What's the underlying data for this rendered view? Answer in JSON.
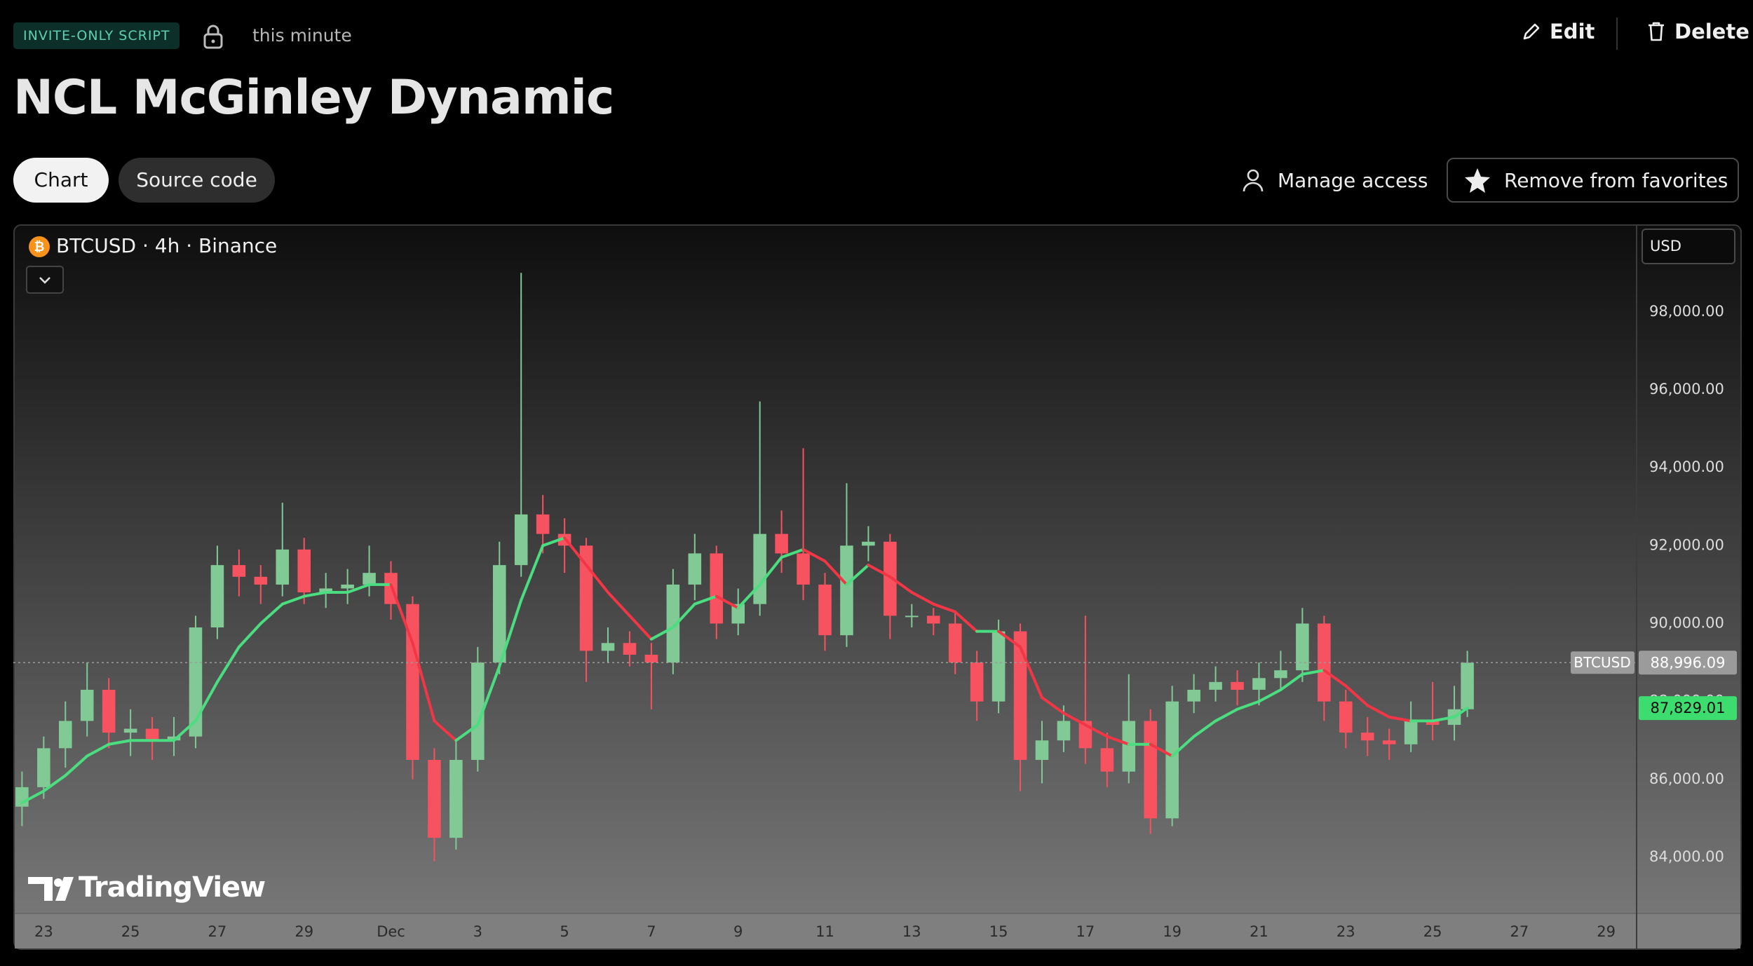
{
  "header": {
    "badge": "INVITE-ONLY SCRIPT",
    "updated": "this minute",
    "title": "NCL McGinley Dynamic",
    "actions": [
      "Edit",
      "Delete"
    ]
  },
  "tabs": [
    "Chart",
    "Source code"
  ],
  "buttons": [
    "Manage access",
    "Remove from favorites"
  ],
  "chart_data": {
    "type": "candlestick",
    "title": "BTCUSD · 4h · Binance",
    "currency": "USD",
    "watermark": "TradingView",
    "up_color": "#81c995",
    "down_color": "#f7525f",
    "x": [
      22.5,
      23,
      23.5,
      24,
      24.5,
      25,
      25.5,
      26,
      26.5,
      27,
      27.5,
      28,
      28.5,
      29,
      29.5,
      30,
      30.5,
      31,
      31.5,
      32,
      32.5,
      33,
      33.5,
      34,
      34.5,
      35,
      35.5,
      36,
      36.5,
      37,
      37.5,
      38,
      38.5,
      39,
      39.5,
      40,
      40.5,
      41,
      41.5,
      42,
      42.5,
      43,
      43.5,
      44,
      44.5,
      45,
      45.5,
      46,
      46.5,
      47,
      47.5,
      48,
      48.5,
      49,
      49.5,
      50,
      50.5,
      51,
      51.5,
      52,
      52.5,
      53,
      53.5,
      54,
      54.5,
      55,
      55.5,
      55.8
    ],
    "open": [
      85300,
      85800,
      86800,
      87500,
      88300,
      87200,
      87300,
      87000,
      87100,
      89900,
      91500,
      91200,
      91000,
      91900,
      90800,
      90900,
      91000,
      91300,
      90500,
      86500,
      84500,
      86500,
      89000,
      91500,
      92800,
      92300,
      92000,
      89300,
      89500,
      89200,
      89000,
      91000,
      91800,
      90000,
      90500,
      92300,
      91800,
      91000,
      89700,
      92000,
      92100,
      90200,
      90200,
      90000,
      89000,
      88000,
      89800,
      86500,
      87000,
      87500,
      86800,
      86200,
      87500,
      85000,
      88000,
      88300,
      88500,
      88300,
      88600,
      88800,
      90000,
      88000,
      87200,
      87000,
      86900,
      87500,
      87400,
      87800
    ],
    "high": [
      86200,
      87100,
      88000,
      89000,
      88600,
      87800,
      87600,
      87600,
      90200,
      92000,
      91900,
      91500,
      93100,
      92200,
      91300,
      91400,
      92000,
      91600,
      90700,
      86800,
      87000,
      89400,
      92100,
      99000,
      93300,
      92700,
      92200,
      89900,
      89800,
      89500,
      91400,
      92300,
      92000,
      90900,
      95700,
      92900,
      94500,
      91300,
      93600,
      92500,
      92300,
      90500,
      90400,
      90300,
      89300,
      90100,
      90000,
      87500,
      87900,
      90200,
      87200,
      88700,
      87800,
      88400,
      88700,
      88900,
      88800,
      89000,
      89300,
      90400,
      90200,
      88300,
      87600,
      87300,
      88000,
      88500,
      88400,
      89300
    ],
    "low": [
      84800,
      85500,
      86300,
      87100,
      86800,
      86600,
      86500,
      86600,
      86800,
      89600,
      90700,
      90500,
      90700,
      90500,
      90400,
      90500,
      90700,
      90100,
      86000,
      83900,
      84200,
      86200,
      88700,
      91200,
      91800,
      91300,
      88500,
      89000,
      88900,
      87800,
      88700,
      90600,
      89600,
      89700,
      90200,
      91300,
      90600,
      89300,
      89400,
      91600,
      89600,
      89900,
      89700,
      88700,
      87500,
      87700,
      85700,
      85900,
      86700,
      86400,
      85800,
      85900,
      84600,
      84800,
      87700,
      88000,
      87900,
      87900,
      88300,
      88500,
      87500,
      86800,
      86600,
      86500,
      86700,
      87000,
      87000,
      87600
    ],
    "close": [
      85800,
      86800,
      87500,
      88300,
      87200,
      87300,
      87000,
      87100,
      89900,
      91500,
      91200,
      91000,
      91900,
      90800,
      90900,
      91000,
      91300,
      90500,
      86500,
      84500,
      86500,
      89000,
      91500,
      92800,
      92300,
      92000,
      89300,
      89500,
      89200,
      89000,
      91000,
      91800,
      90000,
      90500,
      92300,
      91800,
      91000,
      89700,
      92000,
      92100,
      90200,
      90200,
      90000,
      89000,
      88000,
      89800,
      86500,
      87000,
      87500,
      86800,
      86200,
      87500,
      85000,
      88000,
      88300,
      88500,
      88300,
      88600,
      88800,
      90000,
      88000,
      87200,
      87000,
      86900,
      87500,
      87400,
      87800,
      88996.09
    ],
    "overlay": {
      "up_color": "#4ade80",
      "down_color": "#f23645",
      "values": [
        85400,
        85700,
        86100,
        86600,
        86900,
        87000,
        87000,
        87000,
        87500,
        88500,
        89400,
        90000,
        90500,
        90700,
        90800,
        90800,
        91000,
        91000,
        89500,
        87500,
        87000,
        87400,
        88900,
        90600,
        92000,
        92200,
        91500,
        90800,
        90200,
        89600,
        89900,
        90500,
        90700,
        90400,
        91000,
        91700,
        91900,
        91600,
        91000,
        91500,
        91200,
        90800,
        90500,
        90300,
        89800,
        89800,
        89400,
        88100,
        87700,
        87400,
        87100,
        86900,
        86900,
        86600,
        87100,
        87500,
        87800,
        88000,
        88300,
        88700,
        88800,
        88400,
        87900,
        87600,
        87500,
        87500,
        87600,
        87829.01
      ]
    },
    "price_tags": [
      {
        "name": "BTCUSD",
        "value": 88996.09,
        "label": "88,996.09",
        "color": "#9b9b9b"
      },
      {
        "value": 87829.01,
        "label": "87,829.01",
        "color": "#3ddc6f"
      }
    ],
    "xlim": [
      22.3,
      59.7
    ],
    "xticks": [
      {
        "value": 23,
        "label": "23"
      },
      {
        "value": 25,
        "label": "25"
      },
      {
        "value": 27,
        "label": "27"
      },
      {
        "value": 29,
        "label": "29"
      },
      {
        "value": 31,
        "label": "Dec"
      },
      {
        "value": 33,
        "label": "3"
      },
      {
        "value": 35,
        "label": "5"
      },
      {
        "value": 37,
        "label": "7"
      },
      {
        "value": 39,
        "label": "9"
      },
      {
        "value": 41,
        "label": "11"
      },
      {
        "value": 43,
        "label": "13"
      },
      {
        "value": 45,
        "label": "15"
      },
      {
        "value": 47,
        "label": "17"
      },
      {
        "value": 49,
        "label": "19"
      },
      {
        "value": 51,
        "label": "21"
      },
      {
        "value": 53,
        "label": "23"
      },
      {
        "value": 55,
        "label": "25"
      },
      {
        "value": 57,
        "label": "27"
      },
      {
        "value": 59,
        "label": "29"
      }
    ],
    "ylim": [
      82560,
      100210
    ],
    "yticks": [
      {
        "value": 84000,
        "label": "84,000.00"
      },
      {
        "value": 86000,
        "label": "86,000.00"
      },
      {
        "value": 88000,
        "label": "88,000.00"
      },
      {
        "value": 90000,
        "label": "90,000.00"
      },
      {
        "value": 92000,
        "label": "92,000.00"
      },
      {
        "value": 94000,
        "label": "94,000.00"
      },
      {
        "value": 96000,
        "label": "96,000.00"
      },
      {
        "value": 98000,
        "label": "98,000.00"
      }
    ],
    "grid": false
  }
}
